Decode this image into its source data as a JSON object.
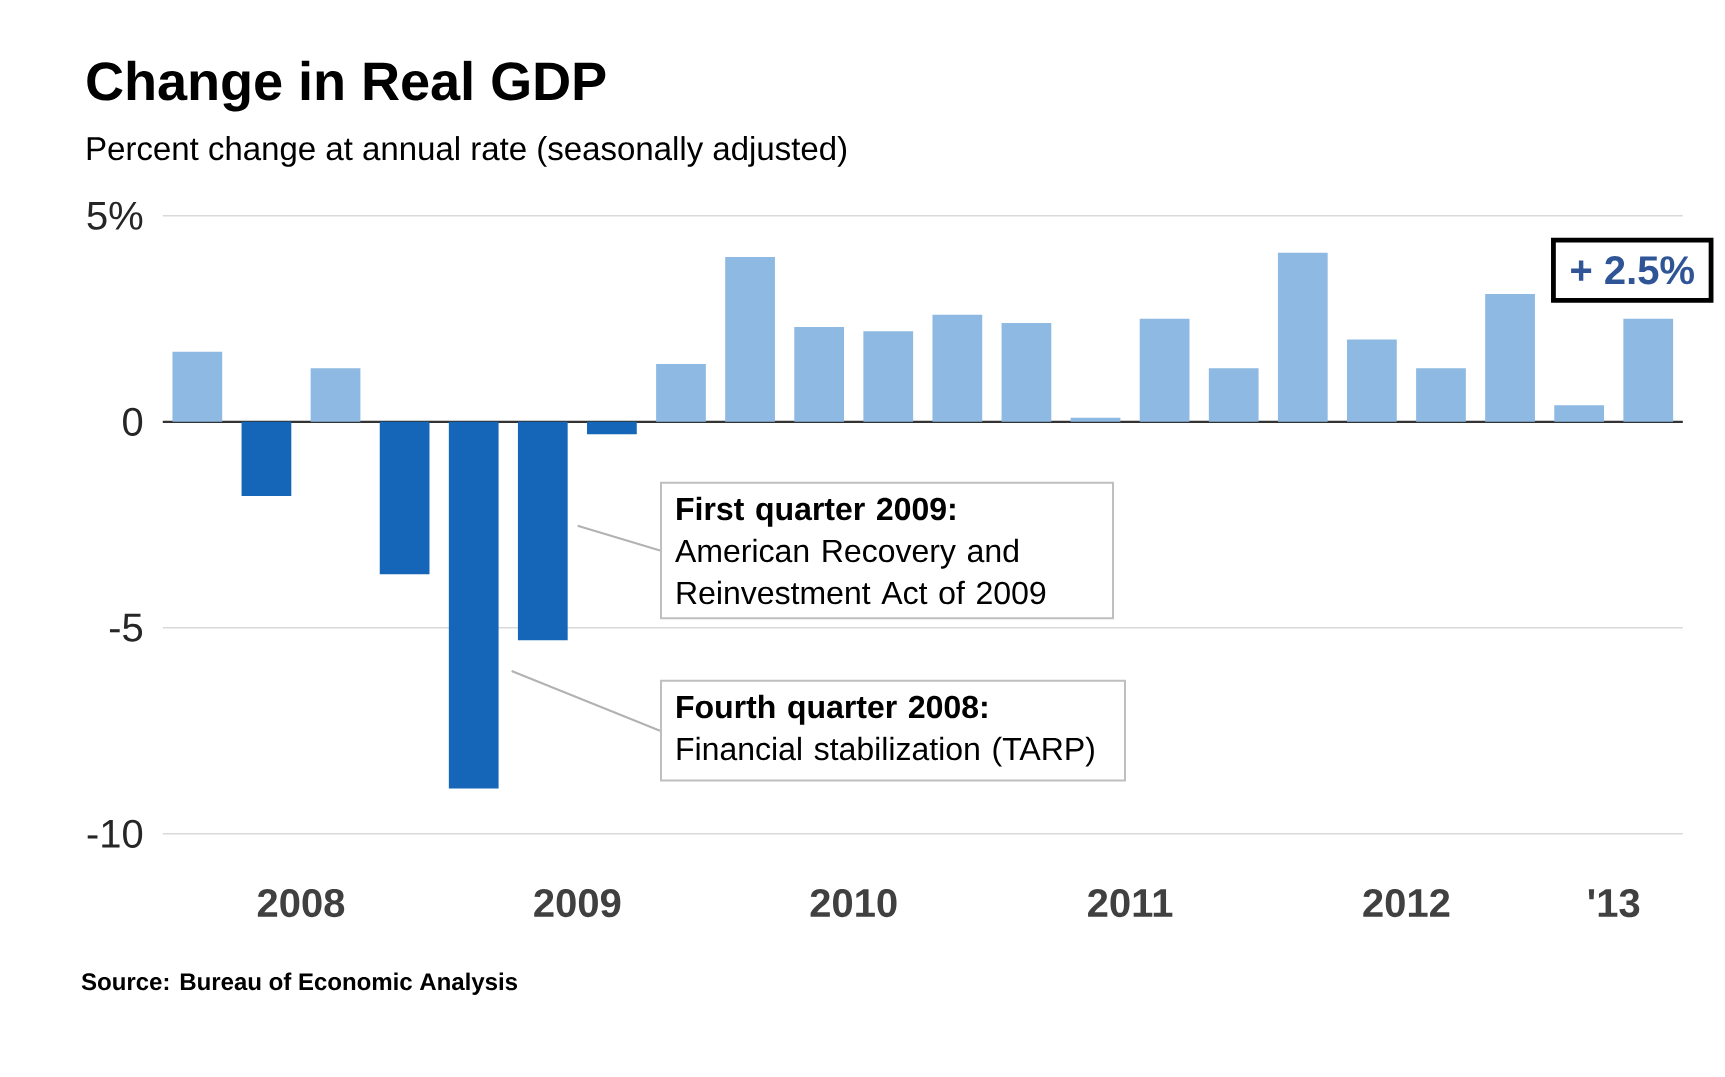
{
  "chart_data": {
    "type": "bar",
    "title": "Change in Real GDP",
    "subtitle": "Percent change at annual rate (seasonally adjusted)",
    "x": [
      2007.875,
      2008.125,
      2008.375,
      2008.625,
      2008.875,
      2009.125,
      2009.375,
      2009.625,
      2009.875,
      2010.125,
      2010.375,
      2010.625,
      2010.875,
      2011.125,
      2011.375,
      2011.625,
      2011.875,
      2012.125,
      2012.375,
      2012.625,
      2012.875,
      2013.125
    ],
    "values": [
      1.7,
      -1.8,
      1.3,
      -3.7,
      -8.9,
      -5.3,
      -0.3,
      1.4,
      4.0,
      2.3,
      2.2,
      2.6,
      2.4,
      0.1,
      2.5,
      1.3,
      4.1,
      2.0,
      1.3,
      3.1,
      0.4,
      2.5
    ],
    "colors": [
      "#8db9e2",
      "#1565b8",
      "#8db9e2",
      "#1565b8",
      "#1565b8",
      "#1565b8",
      "#1565b8",
      "#8db9e2",
      "#8db9e2",
      "#8db9e2",
      "#8db9e2",
      "#8db9e2",
      "#8db9e2",
      "#8db9e2",
      "#8db9e2",
      "#8db9e2",
      "#8db9e2",
      "#8db9e2",
      "#8db9e2",
      "#8db9e2",
      "#8db9e2",
      "#8db9e2"
    ],
    "xlim": [
      2007.75,
      2013.25
    ],
    "xticks": [
      {
        "value": 2008.25,
        "label": "2008"
      },
      {
        "value": 2009.25,
        "label": "2009"
      },
      {
        "value": 2010.25,
        "label": "2010"
      },
      {
        "value": 2011.25,
        "label": "2011"
      },
      {
        "value": 2012.25,
        "label": "2012"
      },
      {
        "value": 2013,
        "label": "'13"
      }
    ],
    "ylim": [
      -10,
      5
    ],
    "yticks": [
      {
        "value": 5,
        "label": "5%"
      },
      0,
      -5,
      -10
    ],
    "grid": "y",
    "annotations": [
      "**First quarter 2009:** American Recovery and Reinvestment Act of 2009",
      "**Fourth quarter 2008:** Financial stabilization (TARP)",
      {
        "text": "+ 2.5%",
        "x": 2013.125,
        "y": 2.5
      },
      "Source: Bureau of Economic Analysis"
    ]
  }
}
